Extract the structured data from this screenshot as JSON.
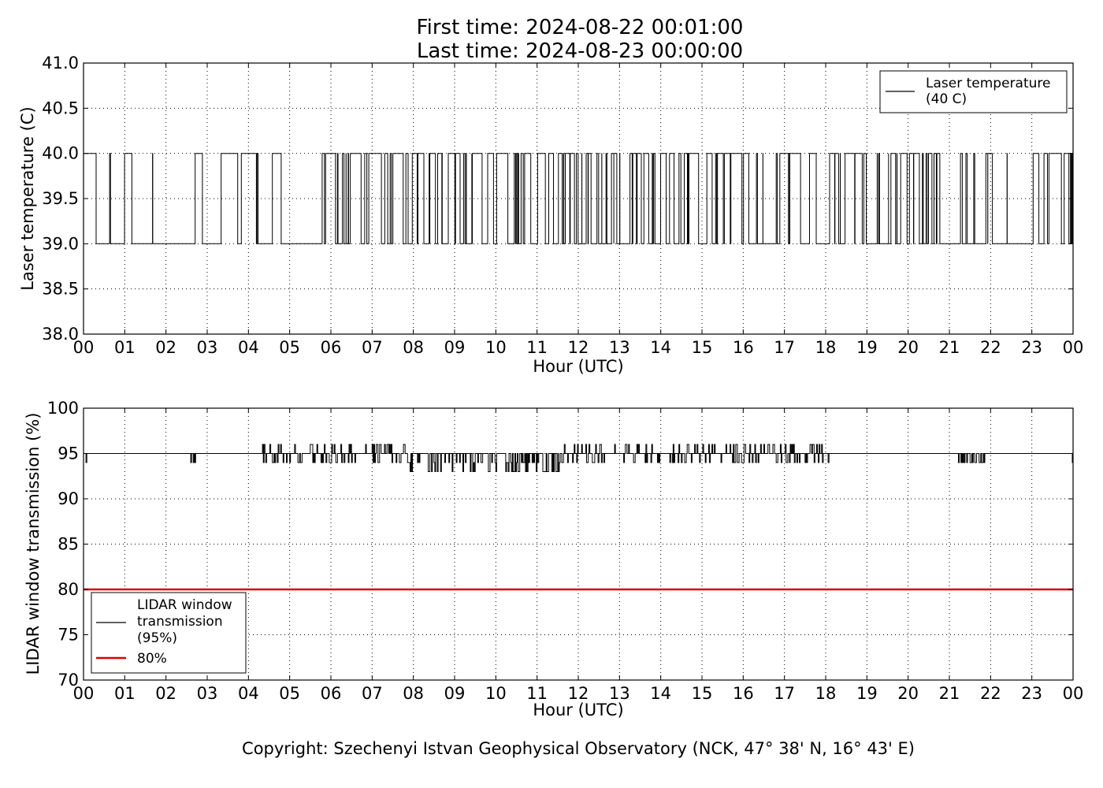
{
  "header": {
    "title_line1": "First time: 2024-08-22 00:01:00",
    "title_line2": "Last time: 2024-08-23 00:00:00"
  },
  "footer": {
    "copyright": "Copyright: Szechenyi Istvan Geophysical Observatory (NCK, 47° 38' N, 16° 43' E)"
  },
  "chart_data": [
    {
      "type": "line",
      "xlabel": "Hour (UTC)",
      "ylabel": "Laser temperature (C)",
      "xlim": [
        0,
        24
      ],
      "ylim": [
        38.0,
        41.0
      ],
      "x_tick_labels": [
        "00",
        "01",
        "02",
        "03",
        "04",
        "05",
        "06",
        "07",
        "08",
        "09",
        "10",
        "11",
        "12",
        "13",
        "14",
        "15",
        "16",
        "17",
        "18",
        "19",
        "20",
        "21",
        "22",
        "23",
        "00"
      ],
      "y_tick_labels": [
        "38.0",
        "38.5",
        "39.0",
        "39.5",
        "40.0",
        "40.5",
        "41.0"
      ],
      "grid": true,
      "legend_position": "top-right",
      "legend": [
        "Laser temperature",
        "(40 C)"
      ],
      "series": [
        {
          "name": "Laser temperature (40 C)",
          "color": "#000000",
          "levels": [
            39.0,
            40.0
          ],
          "note": "rapid switching between 39.0 and 40.0 throughout the day",
          "flip_rate_by_hour": [
            4,
            3,
            2,
            3,
            5,
            3,
            14,
            10,
            12,
            13,
            12,
            14,
            16,
            15,
            13,
            10,
            9,
            7,
            12,
            12,
            14,
            9,
            3,
            12
          ]
        }
      ]
    },
    {
      "type": "line",
      "xlabel": "Hour (UTC)",
      "ylabel": "LIDAR window transmission (%)",
      "xlim": [
        0,
        24
      ],
      "ylim": [
        70,
        100
      ],
      "x_tick_labels": [
        "00",
        "01",
        "02",
        "03",
        "04",
        "05",
        "06",
        "07",
        "08",
        "09",
        "10",
        "11",
        "12",
        "13",
        "14",
        "15",
        "16",
        "17",
        "18",
        "19",
        "20",
        "21",
        "22",
        "23",
        "00"
      ],
      "y_tick_labels": [
        "70",
        "75",
        "80",
        "85",
        "90",
        "95",
        "100"
      ],
      "grid": true,
      "legend_position": "bottom-left",
      "legend": [
        "LIDAR window",
        "transmission",
        "(95%)",
        "80%"
      ],
      "series": [
        {
          "name": "LIDAR window transmission (95%)",
          "color": "#000000",
          "baseline": 95,
          "noisy_between_hours": [
            4.3,
            18.1
          ],
          "min": 92,
          "max": 97
        },
        {
          "name": "80%",
          "color": "#dd0000",
          "value": 80
        }
      ]
    }
  ]
}
